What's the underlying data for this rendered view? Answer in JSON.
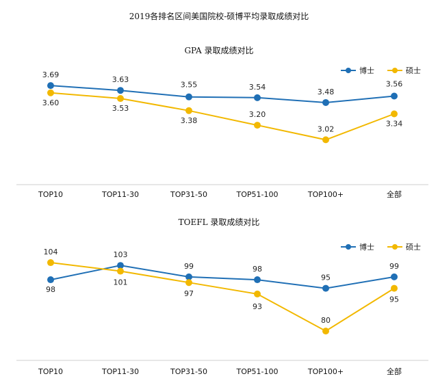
{
  "title": "2019各排名区间美国院校-硕博平均录取成绩对比",
  "colors": {
    "phd": "#1f6fb5",
    "master": "#f2b800"
  },
  "chart_data": [
    {
      "type": "line",
      "title": "GPA 录取成绩对比",
      "categories": [
        "TOP10",
        "TOP11-30",
        "TOP31-50",
        "TOP51-100",
        "TOP100+",
        "全部"
      ],
      "series": [
        {
          "name": "博士",
          "values": [
            3.69,
            3.63,
            3.55,
            3.54,
            3.48,
            3.56
          ]
        },
        {
          "name": "硕士",
          "values": [
            3.6,
            3.53,
            3.38,
            3.2,
            3.02,
            3.34
          ]
        }
      ],
      "value_labels": {
        "博士": [
          "3.69",
          "3.63",
          "3.55",
          "3.54",
          "3.48",
          "3.56"
        ],
        "硕士": [
          "3.60",
          "3.53",
          "3.38",
          "3.20",
          "3.02",
          "3.34"
        ]
      },
      "ylim": [
        2.55,
        3.75
      ],
      "legend": "top-right",
      "grid": false
    },
    {
      "type": "line",
      "title": "TOEFL 录取成绩对比",
      "categories": [
        "TOP10",
        "TOP11-30",
        "TOP31-50",
        "TOP51-100",
        "TOP100+",
        "全部"
      ],
      "series": [
        {
          "name": "博士",
          "values": [
            98,
            103,
            99,
            98,
            95,
            99
          ]
        },
        {
          "name": "硕士",
          "values": [
            104,
            101,
            97,
            93,
            80,
            95
          ]
        }
      ],
      "value_labels": {
        "博士": [
          "98",
          "103",
          "99",
          "98",
          "95",
          "99"
        ],
        "硕士": [
          "104",
          "101",
          "97",
          "93",
          "80",
          "95"
        ]
      },
      "ylim": [
        75,
        110
      ],
      "legend": "top-right",
      "grid": false
    }
  ]
}
